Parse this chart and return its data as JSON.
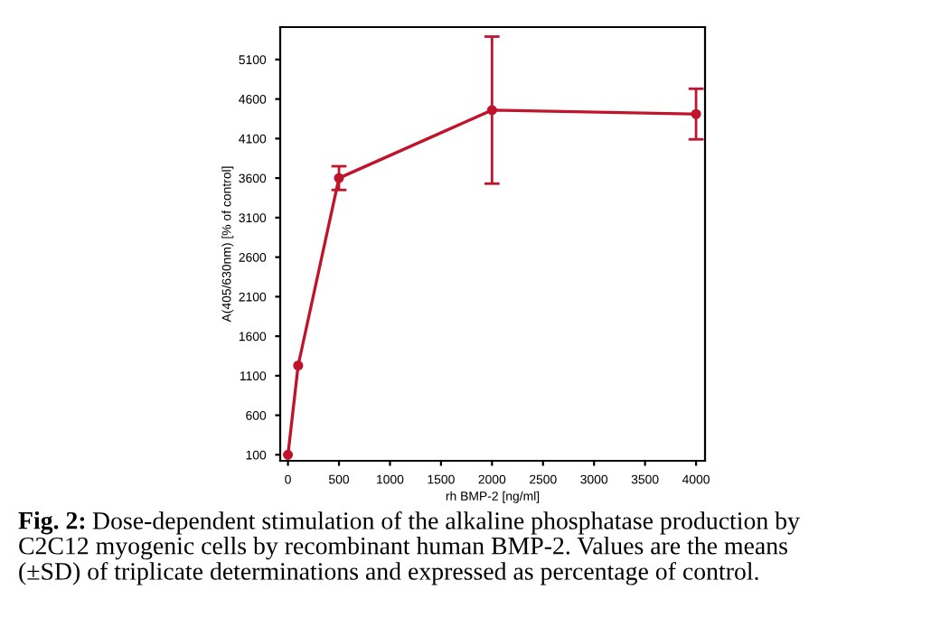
{
  "chart_data": {
    "type": "line",
    "xlabel": "rh BMP-2 [ng/ml]",
    "ylabel": "A(405/630nm) [% of control]",
    "x": [
      0,
      100,
      500,
      2000,
      4000
    ],
    "series": [
      {
        "color": "#c0142c",
        "values": [
          100,
          1230,
          3600,
          4460,
          4410
        ],
        "errors": [
          null,
          null,
          150,
          930,
          320
        ]
      }
    ],
    "marker": "circle",
    "line_style": "solid",
    "xlim": [
      -76,
      4088
    ],
    "xticks": [
      0,
      500,
      1000,
      1500,
      2000,
      2500,
      3000,
      3500,
      4000
    ],
    "ylim": [
      24,
      5510
    ],
    "yticks": [
      100,
      600,
      1100,
      1600,
      2100,
      2600,
      3100,
      3600,
      4100,
      4600,
      5100
    ],
    "grid": false,
    "legend": false,
    "annotations": [
      "Fig. 2:",
      "Dose-dependent stimulation of the alkaline phosphatase production by",
      "C2C12 myogenic cells by recombinant human BMP-2. Values are the means",
      "(±SD) of triplicate determinations and expressed as percentage of control."
    ]
  }
}
